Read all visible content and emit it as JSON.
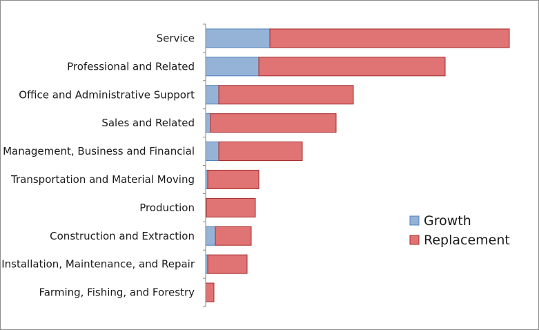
{
  "chart_data": {
    "type": "bar",
    "orientation": "horizontal",
    "stacked": true,
    "categories": [
      "Service",
      "Professional and Related",
      "Office and Administrative Support",
      "Sales and Related",
      "Management, Business and Financial",
      "Transportation and Material Moving",
      "Production",
      "Construction and Extraction",
      "Installation, Maintenance, and Repair",
      "Farming, Fishing, and Forestry"
    ],
    "series": [
      {
        "name": "Growth",
        "color": "#95B3D7",
        "values": [
          93,
          77,
          19,
          7,
          19,
          3,
          1,
          14,
          3,
          0
        ]
      },
      {
        "name": "Replacement",
        "color": "#E07474",
        "values": [
          347,
          270,
          195,
          182,
          121,
          74,
          71,
          52,
          57,
          12
        ]
      }
    ],
    "axis_tick_labels": false,
    "legend_position": "right",
    "grid": false
  }
}
